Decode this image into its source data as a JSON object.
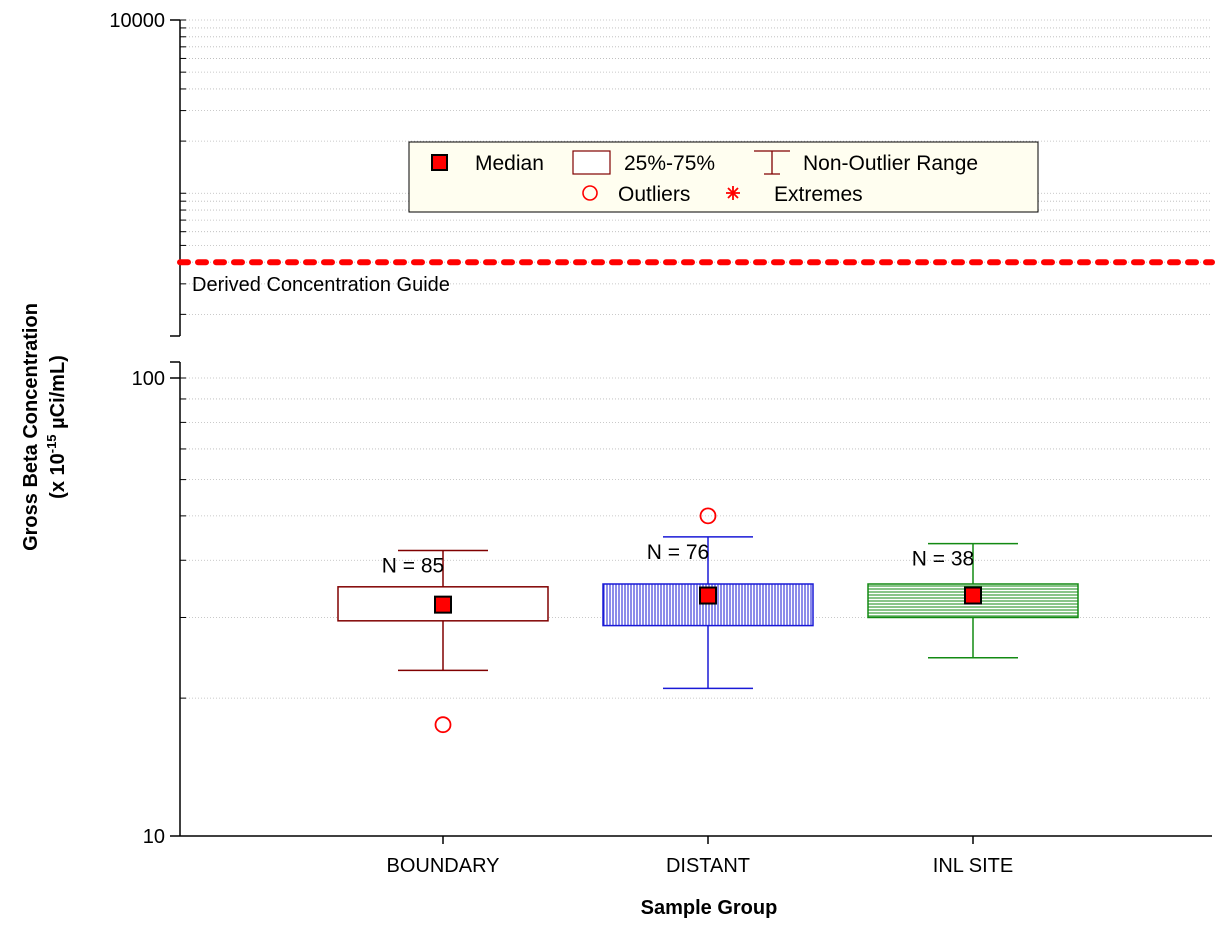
{
  "chart_data": {
    "type": "box",
    "xlabel": "Sample Group",
    "ylabel_line1": "Gross Beta Concentration",
    "ylabel_line2_prefix": "(x 10",
    "ylabel_line2_exp": "-15",
    "ylabel_line2_suffix": " µCi/mL)",
    "y_scale": "log",
    "y_break": true,
    "ylim": [
      10,
      10000
    ],
    "y_ticks": [
      {
        "value": 10,
        "label": "10"
      },
      {
        "value": 100,
        "label": "100"
      },
      {
        "value": 10000,
        "label": "10000"
      }
    ],
    "grid": true,
    "categories": [
      "BOUNDARY",
      "DISTANT",
      "INL SITE"
    ],
    "groups": [
      {
        "name": "BOUNDARY",
        "n_label": "N = 85",
        "median": 32,
        "q1": 29.5,
        "q3": 35,
        "whisker_low": 23,
        "whisker_high": 42,
        "outliers": [
          17.5
        ],
        "color": "#800000",
        "fill": "none"
      },
      {
        "name": "DISTANT",
        "n_label": "N = 76",
        "median": 33.5,
        "q1": 28.8,
        "q3": 35.5,
        "whisker_low": 21,
        "whisker_high": 45,
        "outliers": [
          50
        ],
        "color": "#1a1ad6",
        "fill": "vertical-hatch"
      },
      {
        "name": "INL SITE",
        "n_label": "N = 38",
        "median": 33.5,
        "q1": 30,
        "q3": 35.5,
        "whisker_low": 24.5,
        "whisker_high": 43.5,
        "outliers": [],
        "color": "#138a13",
        "fill": "horizontal-hatch"
      }
    ],
    "reference_line": {
      "value": 400,
      "label": "Derived Concentration Guide",
      "color": "#ff0000"
    },
    "legend": {
      "placement": "top-center",
      "row1": [
        "Median",
        "25%-75%",
        "Non-Outlier Range"
      ],
      "row2": [
        "Outliers",
        "Extremes"
      ]
    }
  }
}
